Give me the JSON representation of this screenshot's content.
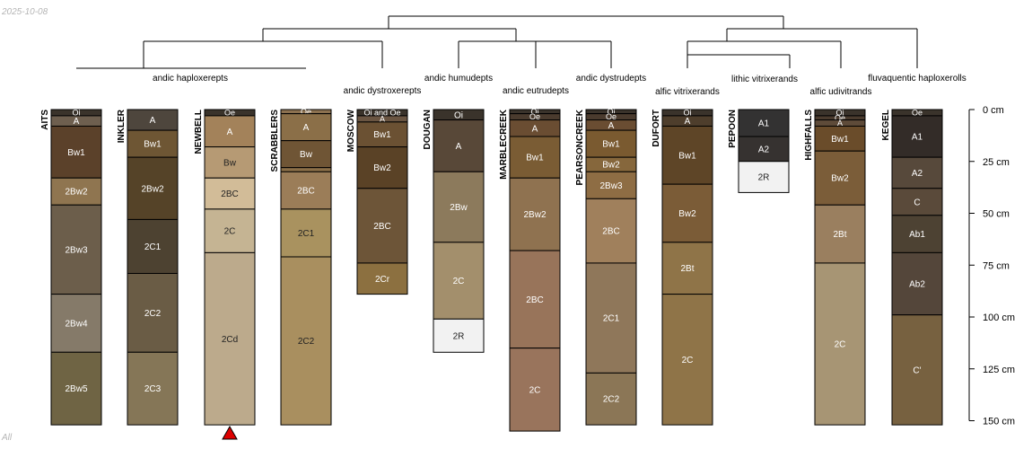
{
  "date_stamp": "2025-10-08",
  "corner_label": "All",
  "depth_axis": {
    "unit": "cm",
    "ticks": [
      {
        "depth": 0,
        "label": "0 cm"
      },
      {
        "depth": 25,
        "label": "25 cm"
      },
      {
        "depth": 50,
        "label": "50 cm"
      },
      {
        "depth": 75,
        "label": "75 cm"
      },
      {
        "depth": 100,
        "label": "100 cm"
      },
      {
        "depth": 125,
        "label": "125 cm"
      },
      {
        "depth": 150,
        "label": "150 cm"
      }
    ],
    "max_depth": 150
  },
  "profiles": [
    {
      "name": "AITS",
      "subgroup": "andic haploxerepts",
      "horizons": [
        {
          "name": "Oi",
          "top": 0,
          "bottom": 3,
          "color": "#3a332b",
          "text": "#ffffff"
        },
        {
          "name": "A",
          "top": 3,
          "bottom": 8,
          "color": "#6e5f4f",
          "text": "#ffffff"
        },
        {
          "name": "Bw1",
          "top": 8,
          "bottom": 33,
          "color": "#5b412a",
          "text": "#ffffff"
        },
        {
          "name": "2Bw2",
          "top": 33,
          "bottom": 46,
          "color": "#8f7550",
          "text": "#ffffff"
        },
        {
          "name": "2Bw3",
          "top": 46,
          "bottom": 89,
          "color": "#6c5e4b",
          "text": "#ffffff"
        },
        {
          "name": "2Bw4",
          "top": 89,
          "bottom": 117,
          "color": "#857a69",
          "text": "#ffffff"
        },
        {
          "name": "2Bw5",
          "top": 117,
          "bottom": 152,
          "color": "#6f6444",
          "text": "#ffffff"
        }
      ]
    },
    {
      "name": "INKLER",
      "subgroup": "andic haploxerepts",
      "horizons": [
        {
          "name": "A",
          "top": 0,
          "bottom": 10,
          "color": "#4e463d",
          "text": "#ffffff"
        },
        {
          "name": "Bw1",
          "top": 10,
          "bottom": 23,
          "color": "#6e5634",
          "text": "#ffffff"
        },
        {
          "name": "2Bw2",
          "top": 23,
          "bottom": 53,
          "color": "#554328",
          "text": "#ffffff"
        },
        {
          "name": "2C1",
          "top": 53,
          "bottom": 79,
          "color": "#4d4231",
          "text": "#ffffff"
        },
        {
          "name": "2C2",
          "top": 79,
          "bottom": 117,
          "color": "#6a5c45",
          "text": "#ffffff"
        },
        {
          "name": "2C3",
          "top": 117,
          "bottom": 152,
          "color": "#857657",
          "text": "#ffffff"
        }
      ]
    },
    {
      "name": "NEWBELL",
      "subgroup": "andic haploxerepts",
      "marker": true,
      "horizons": [
        {
          "name": "Oe",
          "top": 0,
          "bottom": 3,
          "color": "#3a332b",
          "text": "#ffffff"
        },
        {
          "name": "A",
          "top": 3,
          "bottom": 18,
          "color": "#a3825a",
          "text": "#ffffff"
        },
        {
          "name": "Bw",
          "top": 18,
          "bottom": 33,
          "color": "#b69a74",
          "text": "#222222"
        },
        {
          "name": "2BC",
          "top": 33,
          "bottom": 48,
          "color": "#d2bc98",
          "text": "#222222"
        },
        {
          "name": "2C",
          "top": 48,
          "bottom": 69,
          "color": "#c5b493",
          "text": "#222222"
        },
        {
          "name": "2Cd",
          "top": 69,
          "bottom": 152,
          "color": "#bcaa8c",
          "text": "#222222"
        }
      ]
    },
    {
      "name": "SCRABBLERS",
      "subgroup": "andic haploxerepts",
      "horizons": [
        {
          "name": "Oe",
          "top": 0,
          "bottom": 2,
          "color": "#8c7150",
          "text": "#ffffff"
        },
        {
          "name": "A",
          "top": 2,
          "bottom": 15,
          "color": "#8b6f48",
          "text": "#ffffff"
        },
        {
          "name": "Bw",
          "top": 15,
          "bottom": 28,
          "color": "#6f5535",
          "text": "#ffffff"
        },
        {
          "name": "",
          "top": 28,
          "bottom": 30,
          "color": "#8b6f48",
          "text": "#ffffff"
        },
        {
          "name": "2BC",
          "top": 30,
          "bottom": 48,
          "color": "#9b7d58",
          "text": "#ffffff"
        },
        {
          "name": "2C1",
          "top": 48,
          "bottom": 71,
          "color": "#a9925f",
          "text": "#222222"
        },
        {
          "name": "2C2",
          "top": 71,
          "bottom": 152,
          "color": "#a98f5f",
          "text": "#222222"
        }
      ]
    },
    {
      "name": "MOSCOW",
      "subgroup": "andic dystroxerepts",
      "horizons": [
        {
          "name": "Oi and Oe",
          "top": 0,
          "bottom": 3,
          "color": "#3a332b",
          "text": "#ffffff"
        },
        {
          "name": "A",
          "top": 3,
          "bottom": 6,
          "color": "#6a5542",
          "text": "#ffffff"
        },
        {
          "name": "Bw1",
          "top": 6,
          "bottom": 18,
          "color": "#6b5133",
          "text": "#ffffff"
        },
        {
          "name": "Bw2",
          "top": 18,
          "bottom": 38,
          "color": "#5a4226",
          "text": "#ffffff"
        },
        {
          "name": "2BC",
          "top": 38,
          "bottom": 74,
          "color": "#6d5538",
          "text": "#ffffff"
        },
        {
          "name": "2Cr",
          "top": 74,
          "bottom": 89,
          "color": "#8c7040",
          "text": "#ffffff"
        }
      ]
    },
    {
      "name": "DOUGAN",
      "subgroup": "andic humudepts",
      "horizons": [
        {
          "name": "Oi",
          "top": 0,
          "bottom": 5,
          "color": "#3a332b",
          "text": "#ffffff"
        },
        {
          "name": "A",
          "top": 5,
          "bottom": 30,
          "color": "#584838",
          "text": "#ffffff"
        },
        {
          "name": "2Bw",
          "top": 30,
          "bottom": 64,
          "color": "#8c7a5c",
          "text": "#ffffff"
        },
        {
          "name": "2C",
          "top": 64,
          "bottom": 101,
          "color": "#a38f6c",
          "text": "#ffffff"
        },
        {
          "name": "2R",
          "top": 101,
          "bottom": 117,
          "color": "#f2f2f2",
          "text": "#222222"
        }
      ]
    },
    {
      "name": "MARBLECREEK",
      "subgroup": "andic eutrudepts",
      "horizons": [
        {
          "name": "Oi",
          "top": 0,
          "bottom": 2,
          "color": "#3a332b",
          "text": "#ffffff"
        },
        {
          "name": "Oe",
          "top": 2,
          "bottom": 5,
          "color": "#4a3b2e",
          "text": "#ffffff"
        },
        {
          "name": "A",
          "top": 5,
          "bottom": 13,
          "color": "#6a4d32",
          "text": "#ffffff"
        },
        {
          "name": "Bw1",
          "top": 13,
          "bottom": 33,
          "color": "#7a5c34",
          "text": "#ffffff"
        },
        {
          "name": "2Bw2",
          "top": 33,
          "bottom": 68,
          "color": "#8f7250",
          "text": "#ffffff"
        },
        {
          "name": "2BC",
          "top": 68,
          "bottom": 115,
          "color": "#98745a",
          "text": "#ffffff"
        },
        {
          "name": "2C",
          "top": 115,
          "bottom": 155,
          "color": "#99745c",
          "text": "#ffffff"
        }
      ]
    },
    {
      "name": "PEARSONCREEK",
      "subgroup": "andic dystrudepts",
      "horizons": [
        {
          "name": "Oi",
          "top": 0,
          "bottom": 2,
          "color": "#3a332b",
          "text": "#ffffff"
        },
        {
          "name": "Oe",
          "top": 2,
          "bottom": 5,
          "color": "#4a3b2e",
          "text": "#ffffff"
        },
        {
          "name": "A",
          "top": 5,
          "bottom": 10,
          "color": "#6a4d32",
          "text": "#ffffff"
        },
        {
          "name": "Bw1",
          "top": 10,
          "bottom": 23,
          "color": "#7a5a30",
          "text": "#ffffff"
        },
        {
          "name": "Bw2",
          "top": 23,
          "bottom": 30,
          "color": "#86673c",
          "text": "#ffffff"
        },
        {
          "name": "2Bw3",
          "top": 30,
          "bottom": 43,
          "color": "#8e6d44",
          "text": "#ffffff"
        },
        {
          "name": "2BC",
          "top": 43,
          "bottom": 74,
          "color": "#a0805c",
          "text": "#ffffff"
        },
        {
          "name": "2C1",
          "top": 74,
          "bottom": 127,
          "color": "#8f775a",
          "text": "#ffffff"
        },
        {
          "name": "2C2",
          "top": 127,
          "bottom": 152,
          "color": "#8b7656",
          "text": "#ffffff"
        }
      ]
    },
    {
      "name": "DUFORT",
      "subgroup": "alfic vitrixerands",
      "horizons": [
        {
          "name": "Oi",
          "top": 0,
          "bottom": 3,
          "color": "#3a332b",
          "text": "#ffffff"
        },
        {
          "name": "A",
          "top": 3,
          "bottom": 8,
          "color": "#4e3e2c",
          "text": "#ffffff"
        },
        {
          "name": "Bw1",
          "top": 8,
          "bottom": 36,
          "color": "#5e4527",
          "text": "#ffffff"
        },
        {
          "name": "Bw2",
          "top": 36,
          "bottom": 64,
          "color": "#7b5c37",
          "text": "#ffffff"
        },
        {
          "name": "2Bt",
          "top": 64,
          "bottom": 89,
          "color": "#8f7448",
          "text": "#ffffff"
        },
        {
          "name": "2C",
          "top": 89,
          "bottom": 152,
          "color": "#8f7448",
          "text": "#ffffff"
        }
      ]
    },
    {
      "name": "PEPOON",
      "subgroup": "lithic vitrixerands",
      "horizons": [
        {
          "name": "A1",
          "top": 0,
          "bottom": 13,
          "color": "#333232",
          "text": "#ffffff"
        },
        {
          "name": "A2",
          "top": 13,
          "bottom": 25,
          "color": "#363230",
          "text": "#ffffff"
        },
        {
          "name": "2R",
          "top": 25,
          "bottom": 40,
          "color": "#f2f2f2",
          "text": "#222222"
        }
      ]
    },
    {
      "name": "HIGHFALLS",
      "subgroup": "alfic udivitrands",
      "horizons": [
        {
          "name": "Oi",
          "top": 0,
          "bottom": 3,
          "color": "#3a332b",
          "text": "#ffffff"
        },
        {
          "name": "Oe",
          "top": 3,
          "bottom": 5,
          "color": "#4a3b2e",
          "text": "#ffffff"
        },
        {
          "name": "A",
          "top": 5,
          "bottom": 8,
          "color": "#5e4b39",
          "text": "#ffffff"
        },
        {
          "name": "Bw1",
          "top": 8,
          "bottom": 20,
          "color": "#6a4c2a",
          "text": "#ffffff"
        },
        {
          "name": "Bw2",
          "top": 20,
          "bottom": 46,
          "color": "#7b5d39",
          "text": "#ffffff"
        },
        {
          "name": "2Bt",
          "top": 46,
          "bottom": 74,
          "color": "#9a7f5f",
          "text": "#ffffff"
        },
        {
          "name": "2C",
          "top": 74,
          "bottom": 152,
          "color": "#a79574",
          "text": "#ffffff"
        }
      ]
    },
    {
      "name": "KEGEL",
      "subgroup": "fluvaquentic haploxerolls",
      "horizons": [
        {
          "name": "Oe",
          "top": 0,
          "bottom": 3,
          "color": "#3a332b",
          "text": "#ffffff"
        },
        {
          "name": "A1",
          "top": 3,
          "bottom": 23,
          "color": "#332c28",
          "text": "#ffffff"
        },
        {
          "name": "A2",
          "top": 23,
          "bottom": 38,
          "color": "#57493b",
          "text": "#ffffff"
        },
        {
          "name": "C",
          "top": 38,
          "bottom": 51,
          "color": "#5a4a3a",
          "text": "#ffffff"
        },
        {
          "name": "Ab1",
          "top": 51,
          "bottom": 69,
          "color": "#4d4233",
          "text": "#ffffff"
        },
        {
          "name": "Ab2",
          "top": 69,
          "bottom": 99,
          "color": "#54463a",
          "text": "#ffffff"
        },
        {
          "name": "C'",
          "top": 99,
          "bottom": 152,
          "color": "#776140",
          "text": "#ffffff"
        }
      ]
    }
  ],
  "colors": {
    "line": "#000000",
    "marker": "#dd0000",
    "axis_text": "#000000"
  }
}
